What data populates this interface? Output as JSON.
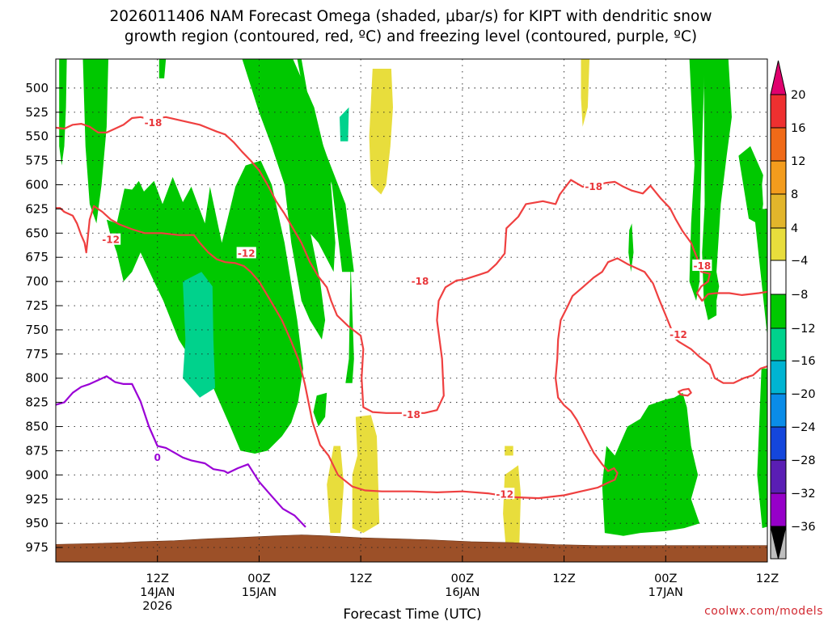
{
  "chart_data": {
    "type": "heatmap",
    "title_lines": [
      "2026011406 NAM Forecast Omega (shaded, μbar/s) for KIPT with dendritic snow",
      "growth region (contoured, red, ºC) and freezing level (contoured, purple, ºC)"
    ],
    "xlabel": "Forecast Time (UTC)",
    "ylabel": "",
    "credit": "coolwx.com/models",
    "y_axis": {
      "unit": "hPa",
      "range": [
        470,
        990
      ],
      "ticks": [
        500,
        525,
        550,
        575,
        600,
        625,
        650,
        675,
        700,
        725,
        750,
        775,
        800,
        825,
        850,
        875,
        900,
        925,
        950,
        975
      ]
    },
    "x_axis": {
      "range_hours": [
        6,
        90
      ],
      "ticks": [
        {
          "hour": 18,
          "label": "12Z",
          "date": "14JAN",
          "year": "2026"
        },
        {
          "hour": 30,
          "label": "00Z",
          "date": "15JAN",
          "year": ""
        },
        {
          "hour": 42,
          "label": "12Z",
          "date": "",
          "year": ""
        },
        {
          "hour": 54,
          "label": "00Z",
          "date": "16JAN",
          "year": ""
        },
        {
          "hour": 66,
          "label": "12Z",
          "date": "",
          "year": ""
        },
        {
          "hour": 78,
          "label": "00Z",
          "date": "17JAN",
          "year": ""
        },
        {
          "hour": 90,
          "label": "12Z",
          "date": "",
          "year": ""
        }
      ]
    },
    "grid": true,
    "colorbar": {
      "levels": [
        -36,
        -32,
        -28,
        -24,
        -20,
        -16,
        -12,
        -8,
        -4,
        4,
        8,
        12,
        16,
        20
      ],
      "labels": [
        "20",
        "16",
        "12",
        "8",
        "4",
        "−4",
        "−8",
        "−12",
        "−16",
        "−20",
        "−24",
        "−28",
        "−32",
        "−36"
      ],
      "colors_top_to_bottom": [
        "#e0006e",
        "#ee3030",
        "#f06a18",
        "#f39c1d",
        "#e2b52b",
        "#e8dd3c",
        "#ffffff",
        "#00c800",
        "#00d28c",
        "#00b4d2",
        "#0a8ce8",
        "#1446dc",
        "#5a1eb4",
        "#9600c8",
        "#bebebe",
        "#000000"
      ],
      "placement": "right"
    },
    "omega_regions": [
      {
        "value": -6,
        "color": "#00c800",
        "label": "-4 to -8"
      },
      {
        "value": -10,
        "color": "#00d28c",
        "label": "-8 to -12"
      },
      {
        "value": 6,
        "color": "#e8dd3c",
        "label": "4 to 8"
      }
    ],
    "contour_labels_red": [
      {
        "hour": 17.5,
        "p": 536,
        "text": "-18"
      },
      {
        "hour": 12.5,
        "p": 657,
        "text": "-12"
      },
      {
        "hour": 28.5,
        "p": 671,
        "text": "-12"
      },
      {
        "hour": 49,
        "p": 700,
        "text": "-18"
      },
      {
        "hour": 48,
        "p": 838,
        "text": "-18"
      },
      {
        "hour": 59,
        "p": 920,
        "text": "-12"
      },
      {
        "hour": 69.5,
        "p": 602,
        "text": "-18"
      },
      {
        "hour": 82.3,
        "p": 684,
        "text": "-18"
      },
      {
        "hour": 79.5,
        "p": 755,
        "text": "-12"
      }
    ],
    "contour_labels_purple": [
      {
        "hour": 18,
        "p": 882,
        "text": "0"
      }
    ],
    "terrain_color": "#9c5028"
  }
}
